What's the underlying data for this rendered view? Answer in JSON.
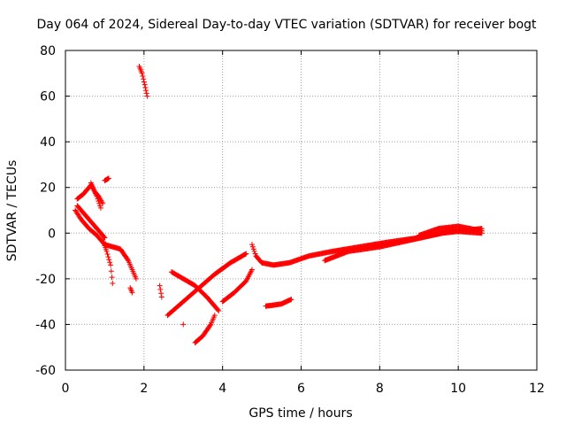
{
  "chart_data": {
    "type": "scatter",
    "title": "Day 064 of 2024, Sidereal Day-to-day VTEC variation (SDTVAR) for receiver bogt",
    "xlabel": "GPS time / hours",
    "ylabel": "SDTVAR / TECUs",
    "xlim": [
      0,
      12
    ],
    "ylim": [
      -60,
      80
    ],
    "xticks": [
      0,
      2,
      4,
      6,
      8,
      10,
      12
    ],
    "yticks": [
      -60,
      -40,
      -20,
      0,
      20,
      40,
      60,
      80
    ],
    "grid": true,
    "marker": "plus",
    "series_color": "#ff0000",
    "series": [
      {
        "segments": [
          {
            "x": [
              0.25,
              0.4,
              0.6,
              0.8,
              1.0,
              1.2,
              1.4,
              1.6,
              1.8
            ],
            "y": [
              10,
              6,
              2,
              -1,
              -5,
              -6,
              -7,
              -12,
              -20
            ]
          },
          {
            "x": [
              0.3,
              0.45,
              0.6,
              0.75,
              0.9,
              1.0
            ],
            "y": [
              12,
              9,
              6,
              3,
              0,
              -2
            ]
          },
          {
            "x": [
              0.95,
              1.05,
              1.15,
              1.2
            ],
            "y": [
              -3,
              -8,
              -14,
              -22
            ]
          },
          {
            "x": [
              0.3,
              0.45,
              0.55,
              0.65,
              0.75,
              0.85,
              0.95
            ],
            "y": [
              15,
              17,
              19,
              21,
              18,
              16,
              13
            ]
          },
          {
            "x": [
              0.65,
              0.7,
              0.8,
              0.9
            ],
            "y": [
              22,
              20,
              16,
              11
            ]
          },
          {
            "x": [
              1.0,
              1.1
            ],
            "y": [
              23,
              24
            ]
          },
          {
            "x": [
              1.65,
              1.7
            ],
            "y": [
              -24,
              -26
            ]
          },
          {
            "x": [
              1.88,
              1.95,
              2.02,
              2.08
            ],
            "y": [
              73,
              70,
              65,
              60
            ]
          },
          {
            "x": [
              2.4,
              2.45
            ],
            "y": [
              -23,
              -28
            ]
          },
          {
            "x": [
              2.6,
              3.0,
              3.4,
              3.8,
              4.2,
              4.6
            ],
            "y": [
              -36,
              -30,
              -24,
              -18,
              -13,
              -9
            ]
          },
          {
            "x": [
              2.7,
              3.0,
              3.3,
              3.6,
              3.9
            ],
            "y": [
              -17,
              -20,
              -23,
              -28,
              -34
            ]
          },
          {
            "x": [
              3.0
            ],
            "y": [
              -40
            ]
          },
          {
            "x": [
              3.3,
              3.5,
              3.7,
              3.8
            ],
            "y": [
              -48,
              -45,
              -40,
              -36
            ]
          },
          {
            "x": [
              4.0,
              4.3,
              4.6,
              4.75
            ],
            "y": [
              -30,
              -26,
              -21,
              -16
            ]
          },
          {
            "x": [
              4.75,
              4.85,
              5.0,
              5.3,
              5.7,
              6.2,
              6.8,
              7.5,
              8.2,
              9.0,
              9.8,
              10.6
            ],
            "y": [
              -5,
              -10,
              -13,
              -14,
              -13,
              -10,
              -8,
              -6,
              -4,
              -2,
              1,
              0
            ]
          },
          {
            "x": [
              5.1,
              5.5,
              5.75
            ],
            "y": [
              -32,
              -31,
              -29
            ]
          },
          {
            "x": [
              6.6,
              7.2,
              8.0,
              8.8,
              9.6,
              10.6
            ],
            "y": [
              -12,
              -8,
              -6,
              -3,
              0,
              2
            ]
          },
          {
            "x": [
              9.0,
              9.5,
              10.0,
              10.6
            ],
            "y": [
              -1,
              2,
              3,
              1
            ]
          }
        ]
      }
    ]
  }
}
